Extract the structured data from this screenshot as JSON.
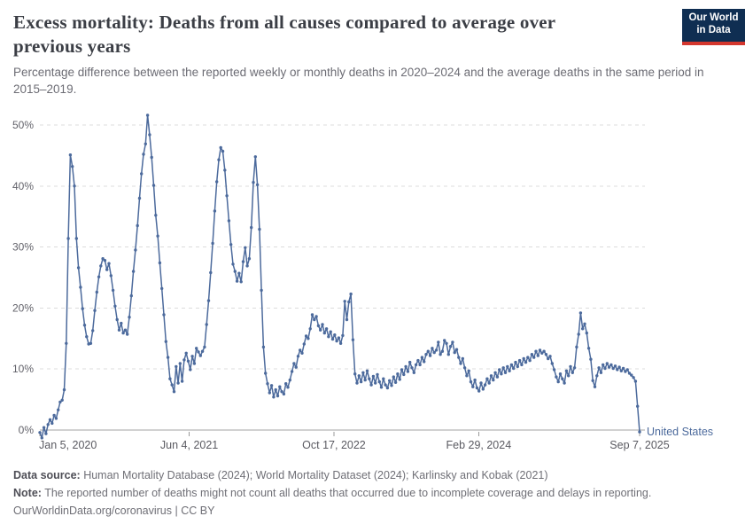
{
  "header": {
    "title": "Excess mortality: Deaths from all causes compared to average over previous years",
    "subtitle": "Percentage difference between the reported weekly or monthly deaths in 2020–2024 and the average deaths in the same period in 2015–2019."
  },
  "logo": {
    "line1": "Our World",
    "line2": "in Data",
    "bg_color": "#0f2e52",
    "accent_color": "#d4372e"
  },
  "chart_data": {
    "type": "line",
    "title": "Excess mortality: Deaths from all causes compared to average over previous years",
    "entity_label": "United States",
    "x_axis": {
      "range": [
        "Jan 5, 2020",
        "Sep 7, 2025"
      ],
      "total_days": 2072,
      "ticks": [
        {
          "label": "Jan 5, 2020",
          "day": 0
        },
        {
          "label": "Jun 4, 2021",
          "day": 516
        },
        {
          "label": "Oct 17, 2022",
          "day": 1016
        },
        {
          "label": "Feb 29, 2024",
          "day": 1516
        },
        {
          "label": "Sep 7, 2025",
          "day": 2072
        }
      ]
    },
    "y_axis": {
      "values": [
        0,
        10,
        20,
        30,
        40,
        50
      ],
      "labels": [
        "0%",
        "10%",
        "20%",
        "30%",
        "40%",
        "50%"
      ],
      "ylim": [
        -2,
        52
      ],
      "grid": true
    },
    "x_unit": "week_index_from_2020-01-05",
    "values": [
      -0.4,
      -1.3,
      0.4,
      -0.6,
      0.9,
      1.7,
      1.1,
      2.4,
      1.9,
      3.3,
      4.6,
      4.9,
      6.6,
      14.2,
      31.4,
      45.1,
      43.2,
      40.0,
      31.4,
      26.6,
      23.4,
      19.9,
      17.2,
      15.3,
      14.1,
      14.2,
      16.3,
      19.6,
      22.6,
      25.1,
      26.9,
      28.1,
      27.8,
      26.3,
      27.3,
      25.3,
      22.9,
      20.3,
      18.1,
      16.4,
      17.5,
      15.9,
      16.4,
      15.7,
      18.5,
      22.0,
      26.0,
      29.5,
      33.5,
      38.0,
      42.0,
      45.2,
      46.9,
      51.6,
      48.4,
      44.7,
      40.1,
      35.2,
      31.8,
      27.4,
      23.2,
      18.9,
      14.5,
      11.9,
      8.4,
      7.4,
      6.3,
      10.4,
      7.7,
      10.9,
      8.0,
      11.5,
      12.6,
      11.3,
      9.9,
      12.1,
      10.9,
      13.4,
      12.8,
      12.2,
      12.9,
      13.6,
      17.3,
      21.2,
      25.8,
      30.6,
      35.9,
      40.7,
      44.3,
      46.3,
      45.7,
      42.6,
      38.4,
      34.3,
      30.4,
      27.2,
      26.0,
      24.4,
      25.7,
      24.3,
      27.6,
      29.9,
      26.9,
      28.1,
      33.2,
      40.6,
      44.8,
      40.2,
      32.9,
      22.9,
      13.6,
      9.3,
      7.6,
      6.1,
      7.3,
      5.4,
      6.6,
      5.6,
      7.1,
      6.3,
      5.9,
      7.6,
      7.0,
      8.2,
      9.6,
      10.9,
      10.3,
      12.1,
      13.1,
      12.6,
      14.1,
      15.4,
      15.0,
      16.6,
      18.9,
      18.1,
      18.6,
      17.1,
      16.4,
      17.3,
      15.9,
      16.6,
      15.3,
      16.1,
      14.9,
      15.6,
      14.6,
      15.1,
      14.2,
      15.5,
      21.1,
      18.1,
      21.0,
      22.3,
      14.8,
      9.2,
      7.7,
      8.9,
      7.9,
      9.4,
      8.2,
      9.7,
      8.4,
      7.4,
      8.8,
      7.7,
      9.1,
      7.9,
      7.0,
      8.4,
      7.4,
      6.9,
      8.1,
      7.3,
      8.7,
      7.8,
      9.2,
      8.3,
      9.9,
      9.1,
      10.4,
      9.6,
      11.1,
      10.2,
      9.4,
      10.7,
      11.4,
      10.7,
      11.9,
      11.2,
      12.4,
      12.9,
      12.2,
      13.4,
      12.7,
      13.1,
      14.4,
      12.4,
      12.9,
      14.7,
      14.2,
      12.4,
      13.7,
      14.4,
      12.7,
      13.2,
      11.9,
      10.9,
      11.7,
      10.2,
      8.9,
      9.7,
      7.9,
      7.1,
      8.2,
      6.9,
      6.4,
      7.7,
      6.7,
      7.4,
      8.4,
      7.7,
      8.9,
      8.2,
      9.4,
      8.7,
      9.9,
      9.2,
      10.2,
      9.4,
      10.4,
      9.7,
      10.7,
      10.1,
      11.1,
      10.4,
      11.4,
      10.7,
      11.7,
      11.1,
      11.9,
      11.4,
      12.4,
      11.9,
      12.9,
      12.2,
      13.1,
      12.6,
      12.9,
      12.4,
      11.7,
      12.1,
      10.9,
      9.9,
      8.7,
      7.9,
      9.2,
      8.4,
      7.7,
      9.7,
      8.9,
      10.4,
      9.4,
      10.2,
      13.6,
      15.7,
      19.2,
      16.6,
      17.4,
      15.9,
      13.4,
      11.6,
      8.1,
      7.1,
      8.9,
      10.2,
      9.4,
      10.7,
      10.1,
      10.9,
      10.3,
      10.7,
      10.1,
      10.5,
      9.9,
      10.3,
      9.7,
      10.1,
      9.6,
      9.9,
      9.3,
      9.0,
      8.6,
      8.0,
      3.9,
      -0.3
    ],
    "colors": {
      "line": "#4C6A9C",
      "entity_label": "#4C6A9C",
      "gridline": "#dcdcdc",
      "zero_line": "#a3a3a3",
      "tick": "#999999",
      "y_label": "#62626a",
      "x_label": "#5a5a61"
    },
    "legend_position": "right-of-line-end"
  },
  "footer": {
    "data_source_label": "Data source:",
    "data_source_text": " Human Mortality Database (2024); World Mortality Dataset (2024); Karlinsky and Kobak (2021)",
    "note_label": "Note:",
    "note_text": " The reported number of deaths might not count all deaths that occurred due to incomplete coverage and delays in reporting.",
    "license_text": "OurWorldinData.org/coronavirus | CC BY"
  }
}
